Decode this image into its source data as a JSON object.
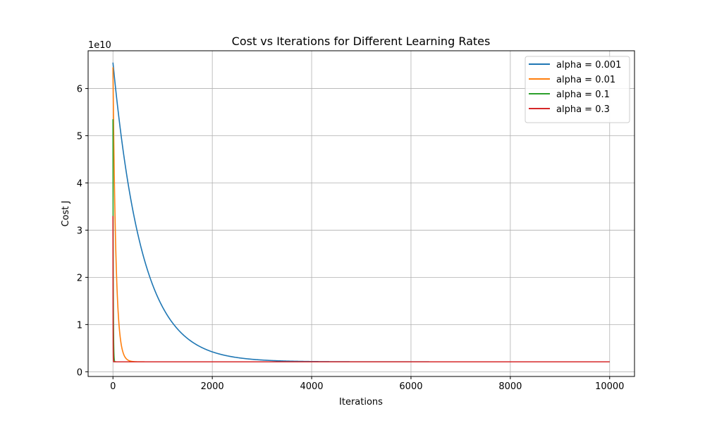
{
  "chart_data": {
    "type": "line",
    "title": "Cost vs Iterations for Different Learning Rates",
    "xlabel": "Iterations",
    "ylabel": "Cost J",
    "y_scale_label": "1e10",
    "y_scale": 10000000000,
    "xlim": [
      -500,
      10500
    ],
    "ylim": [
      -0.1,
      6.8
    ],
    "xticks": [
      0,
      2000,
      4000,
      6000,
      8000,
      10000
    ],
    "yticks": [
      0,
      1,
      2,
      3,
      4,
      5,
      6
    ],
    "grid": true,
    "legend_position": "upper-right",
    "series": [
      {
        "name": "alpha = 0.001",
        "color": "#1f77b4",
        "start": 6.55,
        "floor": 0.21,
        "iterations": 10000,
        "decay_rate": 0.0017
      },
      {
        "name": "alpha = 0.01",
        "color": "#ff7f0e",
        "start": 6.45,
        "floor": 0.21,
        "iterations": 10000,
        "decay_rate": 0.017
      },
      {
        "name": "alpha = 0.1",
        "color": "#2ca02c",
        "start": 5.35,
        "floor": 0.21,
        "iterations": 10000,
        "decay_rate": 0.17
      },
      {
        "name": "alpha = 0.3",
        "color": "#d62728",
        "start": 3.3,
        "floor": 0.21,
        "iterations": 10000,
        "decay_rate": 0.5
      }
    ]
  }
}
